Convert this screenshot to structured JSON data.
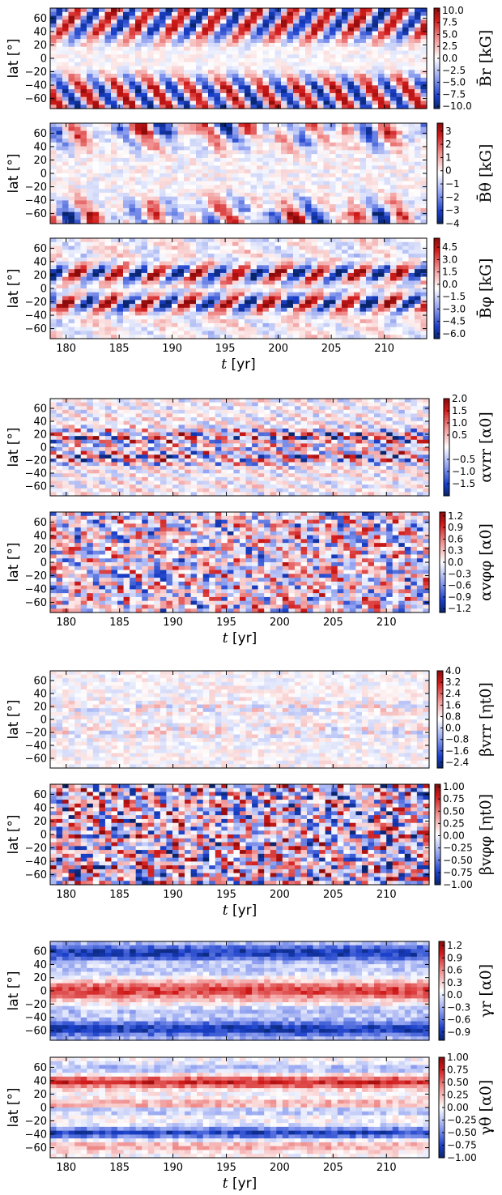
{
  "colors": {
    "negative": "#08246b",
    "mid": "#ffffff",
    "positive": "#8b0a0a"
  },
  "chart_data": [
    {
      "type": "heatmap",
      "group": 0,
      "ylabel": "lat [°]",
      "xlabel": "",
      "quantity_label": "B̄r [kG]",
      "quantity_symbol": "B",
      "ylim": [
        -75,
        75
      ],
      "xlim": [
        178.5,
        214
      ],
      "yticks": [
        "60",
        "40",
        "20",
        "0",
        "−20",
        "−40",
        "−60"
      ],
      "xticks": [],
      "colorbar_ticks": [
        "10.0",
        "7.5",
        "5.0",
        "2.5",
        "0.0",
        "−2.5",
        "−5.0",
        "−7.5",
        "−10.0"
      ],
      "clim": [
        -10.5,
        10.5
      ]
    },
    {
      "type": "heatmap",
      "group": 0,
      "ylabel": "lat [°]",
      "xlabel": "",
      "quantity_label": "B̄θ [kG]",
      "quantity_symbol": "B",
      "ylim": [
        -75,
        75
      ],
      "xlim": [
        178.5,
        214
      ],
      "yticks": [
        "60",
        "40",
        "20",
        "0",
        "−20",
        "−40",
        "−60"
      ],
      "xticks": [],
      "colorbar_ticks": [
        "3",
        "2",
        "1",
        "0",
        "−1",
        "−2",
        "−3",
        "−4"
      ],
      "clim": [
        -4,
        3.6
      ]
    },
    {
      "type": "heatmap",
      "group": 0,
      "ylabel": "lat [°]",
      "xlabel": "t [yr]",
      "quantity_label": "B̄φ [kG]",
      "quantity_symbol": "B",
      "ylim": [
        -75,
        75
      ],
      "xlim": [
        178.5,
        214
      ],
      "yticks": [
        "60",
        "40",
        "20",
        "0",
        "−20",
        "−40",
        "−60"
      ],
      "xticks": [
        "180",
        "185",
        "190",
        "195",
        "200",
        "205",
        "210"
      ],
      "colorbar_ticks": [
        "4.5",
        "3.0",
        "1.5",
        "0.0",
        "−1.5",
        "−3.0",
        "−4.5",
        "−6.0"
      ],
      "clim": [
        -6.6,
        5.6
      ]
    },
    {
      "type": "heatmap",
      "group": 1,
      "ylabel": "lat [°]",
      "xlabel": "",
      "quantity_label": "αvrr [α0]",
      "quantity_symbol": "α",
      "ylim": [
        -75,
        75
      ],
      "xlim": [
        178.5,
        214
      ],
      "yticks": [
        "60",
        "40",
        "20",
        "0",
        "−20",
        "−40",
        "−60"
      ],
      "xticks": [],
      "colorbar_ticks": [
        "2.0",
        "1.5",
        "1.0",
        "0.5",
        "−0.5",
        "−1.0",
        "−1.5"
      ],
      "clim": [
        -2.0,
        2.0
      ]
    },
    {
      "type": "heatmap",
      "group": 1,
      "ylabel": "lat [°]",
      "xlabel": "t [yr]",
      "quantity_label": "αvφφ [α0]",
      "quantity_symbol": "α",
      "ylim": [
        -75,
        75
      ],
      "xlim": [
        178.5,
        214
      ],
      "yticks": [
        "60",
        "40",
        "20",
        "0",
        "−20",
        "−40",
        "−60"
      ],
      "xticks": [
        "180",
        "185",
        "190",
        "195",
        "200",
        "205",
        "210"
      ],
      "colorbar_ticks": [
        "1.2",
        "0.9",
        "0.6",
        "0.3",
        "0.0",
        "−0.3",
        "−0.6",
        "−0.9",
        "−1.2"
      ],
      "clim": [
        -1.3,
        1.3
      ]
    },
    {
      "type": "heatmap",
      "group": 2,
      "ylabel": "lat [°]",
      "xlabel": "",
      "quantity_label": "βvrr [ηt0]",
      "quantity_symbol": "β",
      "ylim": [
        -75,
        75
      ],
      "xlim": [
        178.5,
        214
      ],
      "yticks": [
        "60",
        "40",
        "20",
        "0",
        "−20",
        "−40",
        "−60"
      ],
      "xticks": [],
      "colorbar_ticks": [
        "4.0",
        "3.2",
        "2.4",
        "1.6",
        "0.8",
        "0.0",
        "−0.8",
        "−1.6",
        "−2.4"
      ],
      "clim": [
        -2.8,
        4.0
      ]
    },
    {
      "type": "heatmap",
      "group": 2,
      "ylabel": "lat [°]",
      "xlabel": "t [yr]",
      "quantity_label": "βvφφ [ηt0]",
      "quantity_symbol": "β",
      "ylim": [
        -75,
        75
      ],
      "xlim": [
        178.5,
        214
      ],
      "yticks": [
        "60",
        "40",
        "20",
        "0",
        "−20",
        "−40",
        "−60"
      ],
      "xticks": [
        "180",
        "185",
        "190",
        "195",
        "200",
        "205",
        "210"
      ],
      "colorbar_ticks": [
        "1.00",
        "0.75",
        "0.50",
        "0.25",
        "0.00",
        "−0.25",
        "−0.50",
        "−0.75",
        "−1.00"
      ],
      "clim": [
        -1.0,
        1.05
      ]
    },
    {
      "type": "heatmap",
      "group": 3,
      "ylabel": "lat [°]",
      "xlabel": "",
      "quantity_label": "γr [α0]",
      "quantity_symbol": "γ",
      "ylim": [
        -75,
        75
      ],
      "xlim": [
        178.5,
        214
      ],
      "yticks": [
        "60",
        "40",
        "20",
        "0",
        "−20",
        "−40",
        "−60"
      ],
      "xticks": [],
      "colorbar_ticks": [
        "1.2",
        "0.9",
        "0.6",
        "0.3",
        "0.0",
        "−0.3",
        "−0.6",
        "−0.9"
      ],
      "clim": [
        -1.1,
        1.3
      ]
    },
    {
      "type": "heatmap",
      "group": 3,
      "ylabel": "lat [°]",
      "xlabel": "t [yr]",
      "quantity_label": "γθ [α0]",
      "quantity_symbol": "γ",
      "ylim": [
        -75,
        75
      ],
      "xlim": [
        178.5,
        214
      ],
      "yticks": [
        "60",
        "40",
        "20",
        "0",
        "−20",
        "−40",
        "−60"
      ],
      "xticks": [
        "180",
        "185",
        "190",
        "195",
        "200",
        "205",
        "210"
      ],
      "colorbar_ticks": [
        "1.00",
        "0.75",
        "0.50",
        "0.25",
        "0.00",
        "−0.25",
        "−0.50",
        "−0.75",
        "−1.00"
      ],
      "clim": [
        -1.0,
        1.0
      ]
    }
  ]
}
